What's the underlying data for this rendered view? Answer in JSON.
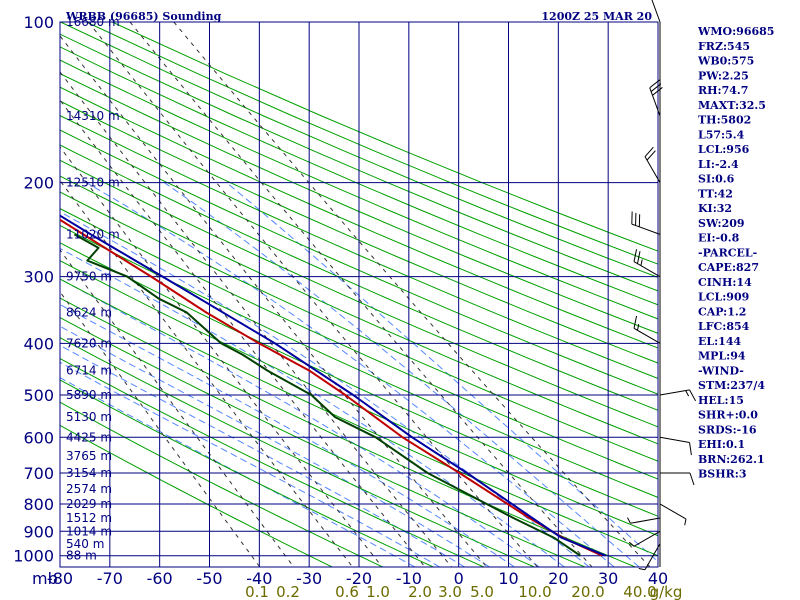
{
  "header": {
    "station": "WRBB (96685) Sounding",
    "time": "1200Z 25 MAR 20"
  },
  "chart_data": {
    "type": "line",
    "subtype": "skew-t log-p",
    "xlabel": "",
    "ylabel": "mb",
    "pressure_axis": {
      "unit_label": "mb",
      "ticks": [
        100,
        200,
        300,
        400,
        500,
        600,
        700,
        800,
        900,
        1000
      ],
      "range": [
        100,
        1050
      ],
      "scale": "log"
    },
    "temperature_axis": {
      "ticks": [
        -80,
        -70,
        -60,
        -50,
        -40,
        -30,
        -20,
        -10,
        0,
        10,
        20,
        30,
        40
      ],
      "range": [
        -80,
        40
      ]
    },
    "mixing_ratio_labels": [
      "0.1",
      "0.2",
      "0.6",
      "1.0",
      "2.0",
      "3.0",
      "5.0",
      "10.0",
      "20.0",
      "40.0",
      "g/kg"
    ],
    "height_labels": [
      {
        "p": 100,
        "label": "16680 m"
      },
      {
        "p": 150,
        "label": "14310 m"
      },
      {
        "p": 200,
        "label": "12510 m"
      },
      {
        "p": 250,
        "label": "11020 m"
      },
      {
        "p": 300,
        "label": "9750 m"
      },
      {
        "p": 350,
        "label": "8624 m"
      },
      {
        "p": 400,
        "label": "7620 m"
      },
      {
        "p": 450,
        "label": "6714 m"
      },
      {
        "p": 500,
        "label": "5890 m"
      },
      {
        "p": 550,
        "label": "5130 m"
      },
      {
        "p": 600,
        "label": "4425 m"
      },
      {
        "p": 650,
        "label": "3765 m"
      },
      {
        "p": 700,
        "label": "3154 m"
      },
      {
        "p": 750,
        "label": "2574 m"
      },
      {
        "p": 800,
        "label": "2029 m"
      },
      {
        "p": 850,
        "label": "1512 m"
      },
      {
        "p": 900,
        "label": "1014 m"
      },
      {
        "p": 950,
        "label": "540 m"
      },
      {
        "p": 1000,
        "label": "88 m"
      }
    ],
    "series": [
      {
        "role": "temperature",
        "color": "#c00000",
        "points": [
          {
            "p": 1000,
            "t": 28.8
          },
          {
            "p": 925,
            "t": 22.8
          },
          {
            "p": 850,
            "t": 18.2
          },
          {
            "p": 700,
            "t": 9.0
          },
          {
            "p": 600,
            "t": 1.4
          },
          {
            "p": 500,
            "t": -5.6
          },
          {
            "p": 450,
            "t": -10.2
          },
          {
            "p": 400,
            "t": -17.4
          },
          {
            "p": 350,
            "t": -24.7
          },
          {
            "p": 300,
            "t": -31.9
          },
          {
            "p": 250,
            "t": -41.0
          },
          {
            "p": 200,
            "t": -52.0
          },
          {
            "p": 150,
            "t": -65.4
          },
          {
            "p": 100,
            "t": -79.8
          }
        ]
      },
      {
        "role": "dewpoint",
        "color": "#004000",
        "points": [
          {
            "p": 1000,
            "t": 24.4
          },
          {
            "p": 925,
            "t": 21.0
          },
          {
            "p": 850,
            "t": 15.0
          },
          {
            "p": 700,
            "t": 2.6
          },
          {
            "p": 600,
            "t": -4.0
          },
          {
            "p": 550,
            "t": -10.0
          },
          {
            "p": 500,
            "t": -12.4
          },
          {
            "p": 450,
            "t": -18.6
          },
          {
            "p": 420,
            "t": -21.9
          },
          {
            "p": 400,
            "t": -25.0
          },
          {
            "p": 350,
            "t": -28.6
          },
          {
            "p": 330,
            "t": -32.7
          },
          {
            "p": 300,
            "t": -36.7
          },
          {
            "p": 280,
            "t": -43.0
          },
          {
            "p": 265,
            "t": -39.4
          },
          {
            "p": 250,
            "t": -42.8
          }
        ]
      },
      {
        "role": "parcel",
        "color": "#0000a0",
        "points": [
          {
            "p": 1000,
            "t": 29.5
          },
          {
            "p": 925,
            "t": 22.5
          },
          {
            "p": 850,
            "t": 18.8
          },
          {
            "p": 700,
            "t": 10.5
          },
          {
            "p": 600,
            "t": 3.3
          },
          {
            "p": 500,
            "t": -4.0
          },
          {
            "p": 400,
            "t": -14.2
          },
          {
            "p": 300,
            "t": -29.6
          },
          {
            "p": 250,
            "t": -39.5
          },
          {
            "p": 200,
            "t": -51.0
          },
          {
            "p": 150,
            "t": -64.0
          },
          {
            "p": 100,
            "t": -80.0
          }
        ]
      }
    ],
    "winds": [
      {
        "p": 1000,
        "dir": 0,
        "spd": 0
      },
      {
        "p": 950,
        "dir": 210,
        "spd": 5
      },
      {
        "p": 900,
        "dir": 240,
        "spd": 5
      },
      {
        "p": 850,
        "dir": 260,
        "spd": 5
      },
      {
        "p": 800,
        "dir": 120,
        "spd": 5
      },
      {
        "p": 700,
        "dir": 90,
        "spd": 10
      },
      {
        "p": 600,
        "dir": 100,
        "spd": 10
      },
      {
        "p": 500,
        "dir": 80,
        "spd": 15
      },
      {
        "p": 400,
        "dir": 300,
        "spd": 15
      },
      {
        "p": 300,
        "dir": 300,
        "spd": 25
      },
      {
        "p": 250,
        "dir": 290,
        "spd": 30
      },
      {
        "p": 200,
        "dir": 330,
        "spd": 20
      },
      {
        "p": 150,
        "dir": 340,
        "spd": 30
      },
      {
        "p": 100,
        "dir": 340,
        "spd": 20
      }
    ],
    "indices": [
      "WMO:96685",
      "FRZ:545",
      "WB0:575",
      "PW:2.25",
      "RH:74.7",
      "MAXT:32.5",
      "TH:5802",
      "L57:5.4",
      "LCL:956",
      "LI:-2.4",
      "SI:0.6",
      "TT:42",
      "KI:32",
      "SW:209",
      "EI:-0.8",
      "-PARCEL-",
      "CAPE:827",
      "CINH:14",
      "LCL:909",
      "CAP:1.2",
      "LFC:854",
      "EL:144",
      "MPL:94",
      "-WIND-",
      "STM:237/4",
      "HEL:15",
      "SHR+:0.0",
      "SRDS:-16",
      "EHI:0.1",
      "BRN:262.1",
      "BSHR:3"
    ]
  },
  "colors": {
    "grid": "#000080",
    "dry_adiabat": "#00a000",
    "moist_adiabat": "#5588ff",
    "mixing_ratio": "#333333",
    "mixing_label": "#6b6b00"
  }
}
